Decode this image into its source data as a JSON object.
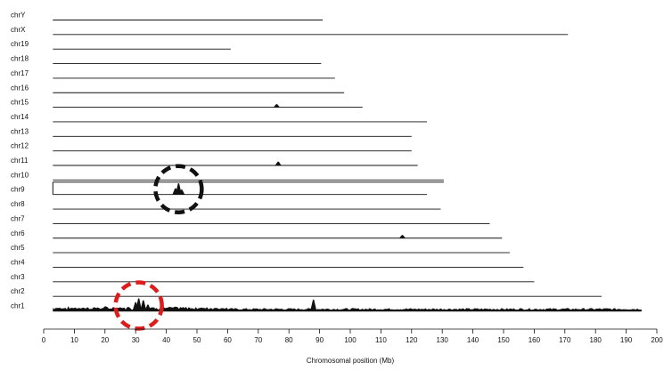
{
  "chart_data": {
    "type": "area",
    "xlabel": "Chromosomal position (Mb)",
    "ylabel": "",
    "xlim": [
      0,
      200
    ],
    "x_ticks": [
      "0",
      "10",
      "20",
      "30",
      "40",
      "50",
      "60",
      "70",
      "80",
      "90",
      "100",
      "110",
      "120",
      "130",
      "140",
      "150",
      "160",
      "170",
      "180",
      "190",
      "200"
    ],
    "grid": false,
    "chromosomes": [
      {
        "name": "chrY",
        "length": 91,
        "peaks": []
      },
      {
        "name": "chrX",
        "length": 171,
        "peaks": []
      },
      {
        "name": "chr19",
        "length": 61,
        "peaks": []
      },
      {
        "name": "chr18",
        "length": 90.5,
        "peaks": []
      },
      {
        "name": "chr17",
        "length": 95,
        "peaks": []
      },
      {
        "name": "chr16",
        "length": 98,
        "peaks": []
      },
      {
        "name": "chr15",
        "length": 104,
        "peaks": [
          {
            "pos": 76,
            "height": 0.25
          }
        ]
      },
      {
        "name": "chr14",
        "length": 125,
        "peaks": []
      },
      {
        "name": "chr13",
        "length": 120,
        "peaks": []
      },
      {
        "name": "chr12",
        "length": 120,
        "peaks": []
      },
      {
        "name": "chr11",
        "length": 122,
        "peaks": [
          {
            "pos": 76.5,
            "height": 0.3
          }
        ]
      },
      {
        "name": "chr10",
        "length": 130.5,
        "peaks": []
      },
      {
        "name": "chr9",
        "length": 125,
        "peaks": [
          {
            "pos": 44,
            "height": 0.9
          },
          {
            "pos": 43,
            "height": 0.5
          },
          {
            "pos": 45,
            "height": 0.4
          }
        ]
      },
      {
        "name": "chr8",
        "length": 129.5,
        "peaks": []
      },
      {
        "name": "chr7",
        "length": 145.5,
        "peaks": []
      },
      {
        "name": "chr6",
        "length": 149.5,
        "peaks": [
          {
            "pos": 117,
            "height": 0.25
          }
        ]
      },
      {
        "name": "chr5",
        "length": 152,
        "peaks": []
      },
      {
        "name": "chr4",
        "length": 156.5,
        "peaks": []
      },
      {
        "name": "chr3",
        "length": 160,
        "peaks": []
      },
      {
        "name": "chr2",
        "length": 182,
        "peaks": []
      },
      {
        "name": "chr1",
        "length": 195,
        "peaks": [
          {
            "pos": 31,
            "height": 1.0
          },
          {
            "pos": 32.5,
            "height": 0.85
          },
          {
            "pos": 30,
            "height": 0.7
          },
          {
            "pos": 34,
            "height": 0.5
          },
          {
            "pos": 88,
            "height": 0.9
          }
        ]
      }
    ],
    "highlighted_chromosome": "chr9",
    "annotations": [
      {
        "type": "dashed-circle",
        "chromosome": "chr9",
        "center_mb": 44,
        "color": "#111111"
      },
      {
        "type": "dashed-circle",
        "chromosome": "chr1",
        "center_mb": 31,
        "color": "#dd1c1c"
      }
    ],
    "colors": {
      "line": "#111111",
      "circle_black": "#111111",
      "circle_red": "#dd1c1c"
    }
  }
}
